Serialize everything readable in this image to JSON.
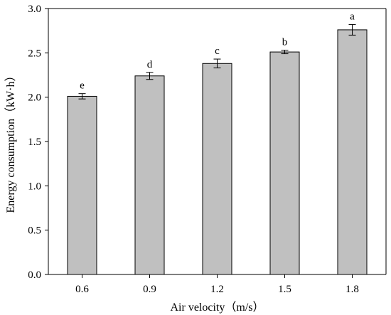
{
  "chart_data": {
    "type": "bar",
    "categories": [
      "0.6",
      "0.9",
      "1.2",
      "1.5",
      "1.8"
    ],
    "values": [
      2.01,
      2.24,
      2.38,
      2.51,
      2.76
    ],
    "errors": [
      0.03,
      0.04,
      0.05,
      0.02,
      0.06
    ],
    "letters": [
      "e",
      "d",
      "c",
      "b",
      "a"
    ],
    "xlabel": "Air velocity（m/s）",
    "ylabel": "Energy consumption（kW·h）",
    "ylim": [
      0,
      3.0
    ],
    "yticks": [
      "0.0",
      "0.5",
      "1.0",
      "1.5",
      "2.0",
      "2.5",
      "3.0"
    ],
    "grid": false,
    "colors": {
      "bar_fill": "#c0c0c0",
      "bar_stroke": "#000000",
      "axis": "#000000"
    }
  }
}
